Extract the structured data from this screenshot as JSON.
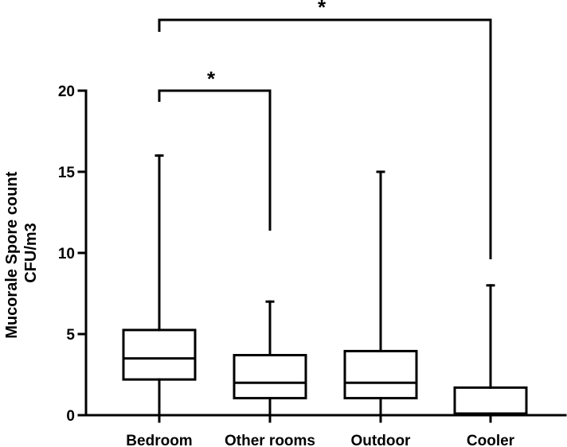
{
  "chart_data": {
    "type": "box",
    "title": "",
    "xlabel": "",
    "ylabel_lines": [
      "Mucorale Spore count",
      "CFU/m3"
    ],
    "ylim": [
      0,
      20
    ],
    "yticks": [
      0,
      5,
      10,
      15,
      20
    ],
    "grid": false,
    "categories": [
      "Bedroom",
      "Other rooms",
      "Outdoor",
      "Cooler"
    ],
    "boxes": [
      {
        "category": "Bedroom",
        "min": 0,
        "q1": 2.2,
        "median": 3.5,
        "q3": 5.25,
        "max": 16
      },
      {
        "category": "Other rooms",
        "min": 0,
        "q1": 1.05,
        "median": 2.0,
        "q3": 3.7,
        "max": 7
      },
      {
        "category": "Outdoor",
        "min": 0,
        "q1": 1.05,
        "median": 2.0,
        "q3": 3.95,
        "max": 15
      },
      {
        "category": "Cooler",
        "min": 0,
        "q1": 0.1,
        "median": 0.1,
        "q3": 1.7,
        "max": 8
      }
    ],
    "significance": [
      {
        "from": "Bedroom",
        "to": "Other rooms",
        "label": "*"
      },
      {
        "from": "Bedroom",
        "to": "Cooler",
        "label": "*"
      }
    ]
  }
}
